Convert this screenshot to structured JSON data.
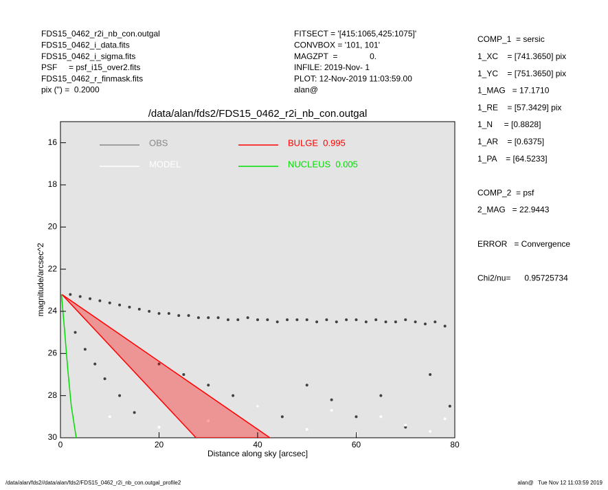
{
  "header": {
    "left": [
      "FDS15_0462_r2i_nb_con.outgal",
      "FDS15_0462_i_data.fits",
      "FDS15_0462_i_sigma.fits",
      "PSF     = psf_i15_over2.fits",
      "FDS15_0462_r_finmask.fits",
      "pix (\") =  0.2000"
    ],
    "middle": [
      "FITSECT = '[415:1065,425:1075]'",
      "CONVBOX = '101, 101'",
      "MAGZPT  =              0.",
      "INFILE: 2019-Nov- 1",
      "PLOT: 12-Nov-2019 11:03:59.00",
      "alan@"
    ],
    "right": [
      "COMP_1  = sersic",
      "1_XC    = [741.3650] pix",
      "1_YC    = [751.3650] pix",
      "1_MAG   = 17.1710",
      "1_RE    = [57.3429] pix",
      "1_N     = [0.8828]",
      "1_AR    = [0.6375]",
      "1_PA    = [64.5233]",
      "",
      "COMP_2  = psf",
      "2_MAG   = 22.9443",
      "",
      "ERROR   = Convergence",
      "",
      "Chi2/nu=      0.95725734"
    ]
  },
  "footer": {
    "left": "/data/alan/fds2//data/alan/fds2/FDS15_0462_r2i_nb_con.outgal_profile2",
    "right": "alan@   Tue Nov 12 11:03:59 2019"
  },
  "chart_data": {
    "type": "scatter",
    "title": "/data/alan/fds2/FDS15_0462_r2i_nb_con.outgal",
    "xlabel": "Distance along sky [arcsec]",
    "ylabel": "magnitude/arcsec^2",
    "xlim": [
      0,
      80
    ],
    "ylim": [
      30,
      15
    ],
    "xticks": [
      0,
      20,
      40,
      60,
      80
    ],
    "yticks": [
      16,
      18,
      20,
      22,
      24,
      26,
      28,
      30
    ],
    "background": "#e4e4e4",
    "series": [
      {
        "name": "OBS",
        "color": "#404040",
        "legend_color": "#888888",
        "kind": "points",
        "x": [
          2,
          4,
          6,
          8,
          10,
          12,
          14,
          16,
          18,
          20,
          22,
          24,
          26,
          28,
          30,
          32,
          34,
          36,
          38,
          40,
          42,
          44,
          46,
          48,
          50,
          52,
          54,
          56,
          58,
          60,
          62,
          64,
          66,
          68,
          70,
          72,
          74,
          76,
          78,
          3,
          5,
          7,
          9,
          12,
          15,
          20,
          25,
          30,
          35,
          40,
          45,
          50,
          55,
          60,
          65,
          70,
          75,
          79
        ],
        "values": [
          23.2,
          23.3,
          23.4,
          23.5,
          23.6,
          23.7,
          23.8,
          23.9,
          24.0,
          24.1,
          24.1,
          24.2,
          24.2,
          24.3,
          24.3,
          24.3,
          24.4,
          24.4,
          24.3,
          24.4,
          24.4,
          24.5,
          24.4,
          24.4,
          24.4,
          24.5,
          24.4,
          24.5,
          24.4,
          24.4,
          24.5,
          24.4,
          24.5,
          24.5,
          24.4,
          24.5,
          24.6,
          24.5,
          24.7,
          25.0,
          25.8,
          26.5,
          27.2,
          28.0,
          28.8,
          26.5,
          27.0,
          27.5,
          28.0,
          28.5,
          29.0,
          27.5,
          28.2,
          29.0,
          28.0,
          29.5,
          27.0,
          28.5
        ]
      },
      {
        "name": "MODEL",
        "color": "#ffffff",
        "kind": "points",
        "x": [
          10,
          20,
          30,
          40,
          50,
          55,
          60,
          65,
          70,
          75,
          78
        ],
        "values": [
          29,
          29.5,
          29.2,
          28.5,
          29.6,
          28.7,
          29.8,
          29.0,
          29.4,
          29.7,
          29.1
        ]
      },
      {
        "name": "BULGE  0.995",
        "color": "#ff0000",
        "kind": "area",
        "x": [
          0.3,
          27.5,
          42.5,
          0.3
        ],
        "values": [
          23.2,
          30,
          30,
          23.2
        ]
      },
      {
        "name": "NUCLEUS  0.005",
        "color": "#00dd00",
        "kind": "line",
        "x": [
          0.2,
          0.8,
          1.5,
          2.2,
          3.2
        ],
        "values": [
          23.2,
          24.8,
          26.8,
          28.5,
          30
        ]
      }
    ]
  }
}
